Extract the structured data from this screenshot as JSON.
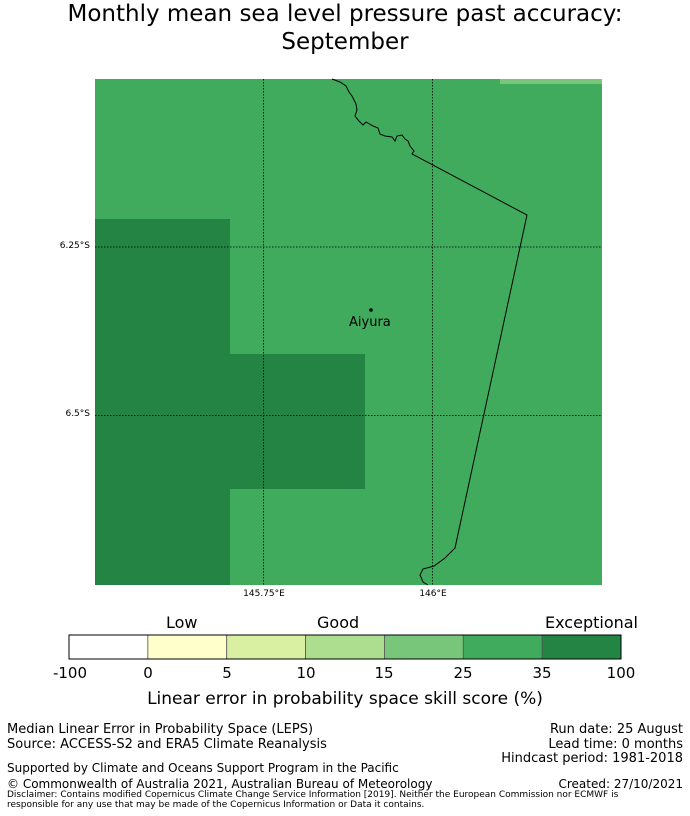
{
  "title": {
    "line1": "Monthly mean sea level pressure past accuracy:",
    "line2": "September"
  },
  "map": {
    "lat_labels": [
      "6.25°S",
      "6.5°S"
    ],
    "lon_labels": [
      "145.75°E",
      "146°E"
    ],
    "place_label": "Aiyura",
    "colors": {
      "exceptional": "#238443",
      "good_25_35": "#41ab5d",
      "good_15_25": "#78c679",
      "coast": "#000000",
      "grid": "#000000"
    }
  },
  "colorbar": {
    "categories": [
      "Low",
      "Good",
      "Exceptional"
    ],
    "ticks": [
      "-100",
      "0",
      "5",
      "10",
      "15",
      "25",
      "35",
      "100"
    ],
    "bins": [
      {
        "from": -100,
        "to": 0,
        "color": "#ffffff"
      },
      {
        "from": 0,
        "to": 5,
        "color": "#ffffcc"
      },
      {
        "from": 5,
        "to": 10,
        "color": "#d9f0a3"
      },
      {
        "from": 10,
        "to": 15,
        "color": "#addd8e"
      },
      {
        "from": 15,
        "to": 25,
        "color": "#78c679"
      },
      {
        "from": 25,
        "to": 35,
        "color": "#41ab5d"
      },
      {
        "from": 35,
        "to": 100,
        "color": "#238443"
      }
    ],
    "label": "Linear error in probability space skill score (%)"
  },
  "footer": {
    "left_line1": "Median Linear Error in Probability Space (LEPS)",
    "left_line2": "Source: ACCESS-S2 and ERA5 Climate Reanalysis",
    "run_date": "Run date: 25 August",
    "lead_time": "Lead time: 0 months",
    "hindcast": "Hindcast period: 1981-2018",
    "supported": "Supported by Climate and Oceans Support Program in the Pacific",
    "copyright": "© Commonwealth of Australia 2021, Australian Bureau of Meteorology",
    "created": "Created: 27/10/2021",
    "disclaimer_line1": "Disclaimer: Contains modified Copernicus Climate Change Service Information [2019]. Neither the European Commission nor ECMWF is",
    "disclaimer_line2": "responsible for any use that may be made of the Copernicus Information or Data it contains."
  }
}
